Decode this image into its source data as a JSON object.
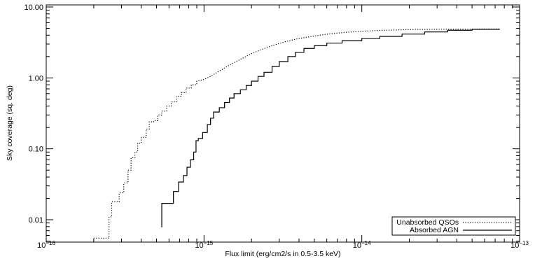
{
  "chart_data": {
    "type": "line",
    "title": "",
    "xlabel": "Flux limit (erg/cm2/s in 0.5-3.5 keV)",
    "ylabel": "Sky coverage (sq. deg)",
    "x_scale": "log",
    "y_scale": "log",
    "xlim": [
      1e-16,
      1e-13
    ],
    "ylim": [
      0.005,
      10
    ],
    "grid": false,
    "legend_position": "bottom-right",
    "x_ticks": [
      {
        "value": 1e-16,
        "base": "10",
        "exp": "−16"
      },
      {
        "value": 1e-15,
        "base": "10",
        "exp": "−15"
      },
      {
        "value": 1e-14,
        "base": "10",
        "exp": "−14"
      },
      {
        "value": 1e-13,
        "base": "10",
        "exp": "−13"
      }
    ],
    "y_ticks": [
      {
        "value": 0.01,
        "label": "0.01"
      },
      {
        "value": 0.1,
        "label": "0.10"
      },
      {
        "value": 1,
        "label": "1.00"
      },
      {
        "value": 10,
        "label": "10.00"
      }
    ],
    "series": [
      {
        "name": "Unabsorbed QSOs",
        "style": "dotted",
        "points": [
          [
            2e-16,
            0.0055
          ],
          [
            2.5e-16,
            0.0055
          ],
          [
            2.5e-16,
            0.011
          ],
          [
            2.6e-16,
            0.011
          ],
          [
            2.6e-16,
            0.018
          ],
          [
            2.9e-16,
            0.018
          ],
          [
            2.9e-16,
            0.024
          ],
          [
            3.1e-16,
            0.024
          ],
          [
            3.1e-16,
            0.033
          ],
          [
            3.3e-16,
            0.033
          ],
          [
            3.3e-16,
            0.05
          ],
          [
            3.45e-16,
            0.05
          ],
          [
            3.45e-16,
            0.075
          ],
          [
            3.65e-16,
            0.075
          ],
          [
            3.65e-16,
            0.09
          ],
          [
            3.8e-16,
            0.09
          ],
          [
            3.8e-16,
            0.12
          ],
          [
            4e-16,
            0.12
          ],
          [
            4e-16,
            0.145
          ],
          [
            4.3e-16,
            0.145
          ],
          [
            4.3e-16,
            0.19
          ],
          [
            4.5e-16,
            0.19
          ],
          [
            4.5e-16,
            0.24
          ],
          [
            4.8e-16,
            0.24
          ],
          [
            4.8e-16,
            0.25
          ],
          [
            5.1e-16,
            0.25
          ],
          [
            5.1e-16,
            0.3
          ],
          [
            5.4e-16,
            0.3
          ],
          [
            5.4e-16,
            0.34
          ],
          [
            5.8e-16,
            0.34
          ],
          [
            5.8e-16,
            0.4
          ],
          [
            6.2e-16,
            0.4
          ],
          [
            6.2e-16,
            0.46
          ],
          [
            6.7e-16,
            0.46
          ],
          [
            6.7e-16,
            0.55
          ],
          [
            7.2e-16,
            0.55
          ],
          [
            7.2e-16,
            0.62
          ],
          [
            7.7e-16,
            0.62
          ],
          [
            7.7e-16,
            0.72
          ],
          [
            8.3e-16,
            0.72
          ],
          [
            8.3e-16,
            0.8
          ],
          [
            9e-16,
            0.8
          ],
          [
            9e-16,
            0.9
          ],
          [
            1e-15,
            0.95
          ],
          [
            1.1e-15,
            1.05
          ],
          [
            1.25e-15,
            1.25
          ],
          [
            1.4e-15,
            1.45
          ],
          [
            1.6e-15,
            1.7
          ],
          [
            1.8e-15,
            1.95
          ],
          [
            2e-15,
            2.2
          ],
          [
            2.3e-15,
            2.5
          ],
          [
            2.7e-15,
            2.85
          ],
          [
            3.2e-15,
            3.2
          ],
          [
            4e-15,
            3.6
          ],
          [
            5e-15,
            3.9
          ],
          [
            6.3e-15,
            4.2
          ],
          [
            8e-15,
            4.4
          ],
          [
            1e-14,
            4.55
          ],
          [
            1.4e-14,
            4.7
          ],
          [
            2e-14,
            4.8
          ],
          [
            3e-14,
            4.85
          ],
          [
            5e-14,
            4.88
          ],
          [
            7.5e-14,
            4.9
          ]
        ]
      },
      {
        "name": "Absorbed AGN",
        "style": "solid",
        "points": [
          [
            5.4e-16,
            0.0078
          ],
          [
            5.4e-16,
            0.017
          ],
          [
            6.4e-16,
            0.017
          ],
          [
            6.4e-16,
            0.025
          ],
          [
            6.9e-16,
            0.025
          ],
          [
            6.9e-16,
            0.034
          ],
          [
            7.4e-16,
            0.034
          ],
          [
            7.4e-16,
            0.042
          ],
          [
            7.8e-16,
            0.042
          ],
          [
            7.8e-16,
            0.055
          ],
          [
            8.2e-16,
            0.055
          ],
          [
            8.2e-16,
            0.07
          ],
          [
            8.6e-16,
            0.07
          ],
          [
            8.6e-16,
            0.09
          ],
          [
            8.9e-16,
            0.09
          ],
          [
            8.9e-16,
            0.13
          ],
          [
            9.2e-16,
            0.13
          ],
          [
            9.2e-16,
            0.14
          ],
          [
            9.8e-16,
            0.14
          ],
          [
            9.8e-16,
            0.17
          ],
          [
            1.05e-15,
            0.17
          ],
          [
            1.05e-15,
            0.22
          ],
          [
            1.1e-15,
            0.22
          ],
          [
            1.1e-15,
            0.27
          ],
          [
            1.15e-15,
            0.27
          ],
          [
            1.15e-15,
            0.33
          ],
          [
            1.25e-15,
            0.33
          ],
          [
            1.25e-15,
            0.38
          ],
          [
            1.35e-15,
            0.38
          ],
          [
            1.35e-15,
            0.45
          ],
          [
            1.45e-15,
            0.45
          ],
          [
            1.45e-15,
            0.52
          ],
          [
            1.55e-15,
            0.52
          ],
          [
            1.55e-15,
            0.6
          ],
          [
            1.7e-15,
            0.6
          ],
          [
            1.7e-15,
            0.68
          ],
          [
            1.85e-15,
            0.68
          ],
          [
            1.85e-15,
            0.78
          ],
          [
            2e-15,
            0.78
          ],
          [
            2e-15,
            0.9
          ],
          [
            2.2e-15,
            0.9
          ],
          [
            2.2e-15,
            1.05
          ],
          [
            2.4e-15,
            1.05
          ],
          [
            2.4e-15,
            1.2
          ],
          [
            2.7e-15,
            1.2
          ],
          [
            2.7e-15,
            1.45
          ],
          [
            3e-15,
            1.45
          ],
          [
            3e-15,
            1.7
          ],
          [
            3.4e-15,
            1.7
          ],
          [
            3.4e-15,
            2.0
          ],
          [
            3.8e-15,
            2.0
          ],
          [
            3.8e-15,
            2.3
          ],
          [
            4.3e-15,
            2.3
          ],
          [
            4.3e-15,
            2.6
          ],
          [
            5e-15,
            2.6
          ],
          [
            5e-15,
            2.85
          ],
          [
            6e-15,
            2.85
          ],
          [
            6e-15,
            3.1
          ],
          [
            7.5e-15,
            3.1
          ],
          [
            7.5e-15,
            3.35
          ],
          [
            1e-14,
            3.35
          ],
          [
            1e-14,
            3.6
          ],
          [
            1.3e-14,
            3.6
          ],
          [
            1.3e-14,
            3.85
          ],
          [
            1.8e-14,
            3.85
          ],
          [
            1.8e-14,
            4.15
          ],
          [
            2.5e-14,
            4.15
          ],
          [
            2.5e-14,
            4.45
          ],
          [
            3.5e-14,
            4.45
          ],
          [
            3.5e-14,
            4.7
          ],
          [
            5e-14,
            4.7
          ],
          [
            5e-14,
            4.85
          ],
          [
            7.5e-14,
            4.85
          ]
        ]
      }
    ]
  }
}
